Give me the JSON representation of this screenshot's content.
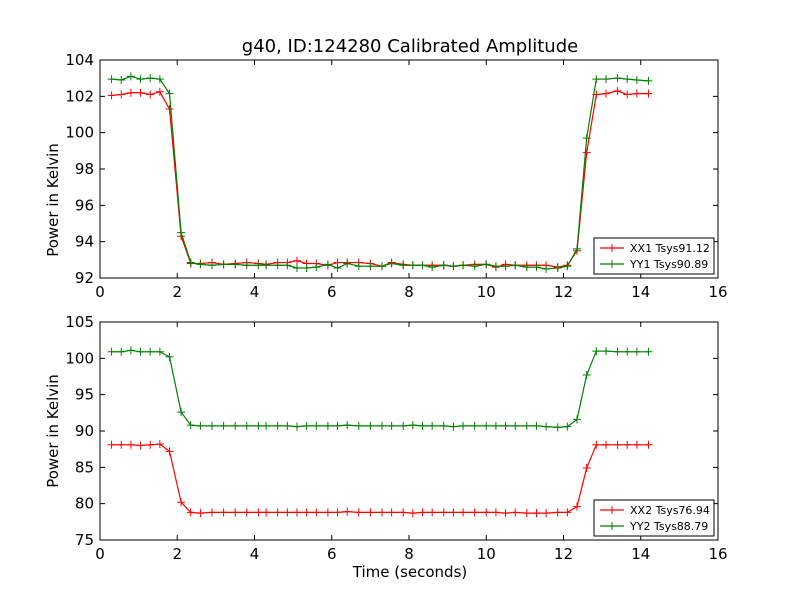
{
  "chart_data": [
    {
      "type": "line",
      "title": "g40, ID:124280 Calibrated Amplitude",
      "xlabel": "",
      "ylabel": "Power in Kelvin",
      "xlim": [
        0,
        16
      ],
      "ylim": [
        92,
        104
      ],
      "xticks": [
        0,
        2,
        4,
        6,
        8,
        10,
        12,
        14,
        16
      ],
      "yticks": [
        92,
        94,
        96,
        98,
        100,
        102,
        104
      ],
      "grid": false,
      "legend": "lower-right",
      "marker": "plus",
      "x": [
        0.3,
        0.55,
        0.8,
        1.05,
        1.3,
        1.55,
        1.8,
        2.1,
        2.35,
        2.6,
        2.9,
        3.2,
        3.5,
        3.8,
        4.1,
        4.3,
        4.6,
        4.85,
        5.1,
        5.35,
        5.6,
        5.9,
        6.15,
        6.4,
        6.7,
        7.0,
        7.3,
        7.55,
        7.85,
        8.1,
        8.35,
        8.6,
        8.9,
        9.15,
        9.4,
        9.7,
        10.0,
        10.25,
        10.5,
        10.75,
        11.05,
        11.3,
        11.55,
        11.85,
        12.1,
        12.35,
        12.6,
        12.85,
        13.1,
        13.4,
        13.65,
        13.9,
        14.2
      ],
      "series": [
        {
          "name": "XX1 Tsys91.12",
          "color": "#ff0000",
          "values": [
            102.05,
            102.1,
            102.2,
            102.2,
            102.1,
            102.25,
            101.3,
            94.3,
            92.8,
            92.8,
            92.85,
            92.75,
            92.8,
            92.85,
            92.8,
            92.75,
            92.85,
            92.85,
            92.95,
            92.8,
            92.8,
            92.7,
            92.85,
            92.85,
            92.85,
            92.8,
            92.65,
            92.85,
            92.75,
            92.7,
            92.7,
            92.7,
            92.7,
            92.65,
            92.7,
            92.75,
            92.75,
            92.6,
            92.75,
            92.7,
            92.7,
            92.7,
            92.7,
            92.6,
            92.7,
            93.5,
            98.9,
            102.1,
            102.15,
            102.3,
            102.1,
            102.15,
            102.15
          ]
        },
        {
          "name": "YY1 Tsys90.89",
          "color": "#008000",
          "values": [
            102.95,
            102.9,
            103.1,
            102.95,
            103.0,
            102.95,
            102.15,
            94.5,
            92.85,
            92.75,
            92.7,
            92.75,
            92.75,
            92.7,
            92.7,
            92.7,
            92.7,
            92.7,
            92.55,
            92.55,
            92.6,
            92.75,
            92.55,
            92.8,
            92.65,
            92.65,
            92.65,
            92.8,
            92.7,
            92.7,
            92.7,
            92.6,
            92.7,
            92.65,
            92.7,
            92.65,
            92.75,
            92.65,
            92.65,
            92.7,
            92.6,
            92.6,
            92.5,
            92.55,
            92.65,
            93.6,
            99.7,
            102.95,
            102.95,
            103.0,
            102.95,
            102.9,
            102.85
          ]
        }
      ]
    },
    {
      "type": "line",
      "title": "",
      "xlabel": "Time (seconds)",
      "ylabel": "Power in Kelvin",
      "xlim": [
        0,
        16
      ],
      "ylim": [
        75,
        105
      ],
      "xticks": [
        0,
        2,
        4,
        6,
        8,
        10,
        12,
        14,
        16
      ],
      "yticks": [
        75,
        80,
        85,
        90,
        95,
        100,
        105
      ],
      "grid": false,
      "legend": "lower-right",
      "marker": "plus",
      "x": [
        0.3,
        0.55,
        0.8,
        1.05,
        1.3,
        1.55,
        1.8,
        2.1,
        2.35,
        2.6,
        2.9,
        3.2,
        3.5,
        3.8,
        4.1,
        4.3,
        4.6,
        4.85,
        5.1,
        5.35,
        5.6,
        5.9,
        6.15,
        6.4,
        6.7,
        7.0,
        7.3,
        7.55,
        7.85,
        8.1,
        8.35,
        8.6,
        8.9,
        9.15,
        9.4,
        9.7,
        10.0,
        10.25,
        10.5,
        10.75,
        11.05,
        11.3,
        11.55,
        11.85,
        12.1,
        12.35,
        12.6,
        12.85,
        13.1,
        13.4,
        13.65,
        13.9,
        14.2
      ],
      "series": [
        {
          "name": "XX2 Tsys76.94",
          "color": "#ff0000",
          "values": [
            88.1,
            88.1,
            88.1,
            88.0,
            88.1,
            88.2,
            87.2,
            80.2,
            78.8,
            78.7,
            78.8,
            78.8,
            78.8,
            78.8,
            78.8,
            78.8,
            78.8,
            78.8,
            78.8,
            78.8,
            78.8,
            78.8,
            78.8,
            78.9,
            78.8,
            78.8,
            78.8,
            78.8,
            78.8,
            78.7,
            78.8,
            78.8,
            78.8,
            78.8,
            78.8,
            78.8,
            78.8,
            78.8,
            78.7,
            78.8,
            78.7,
            78.7,
            78.7,
            78.8,
            78.8,
            79.6,
            84.9,
            88.1,
            88.1,
            88.1,
            88.1,
            88.1,
            88.1
          ]
        },
        {
          "name": "YY2 Tsys88.79",
          "color": "#008000",
          "values": [
            100.9,
            100.9,
            101.1,
            100.9,
            100.9,
            100.9,
            100.2,
            92.6,
            90.8,
            90.7,
            90.7,
            90.7,
            90.7,
            90.7,
            90.7,
            90.7,
            90.7,
            90.7,
            90.6,
            90.7,
            90.7,
            90.7,
            90.7,
            90.8,
            90.7,
            90.7,
            90.7,
            90.7,
            90.7,
            90.8,
            90.7,
            90.7,
            90.7,
            90.6,
            90.7,
            90.7,
            90.7,
            90.7,
            90.7,
            90.7,
            90.7,
            90.7,
            90.6,
            90.5,
            90.6,
            91.6,
            97.7,
            101.0,
            101.0,
            100.9,
            100.9,
            100.9,
            100.9
          ]
        }
      ]
    }
  ]
}
